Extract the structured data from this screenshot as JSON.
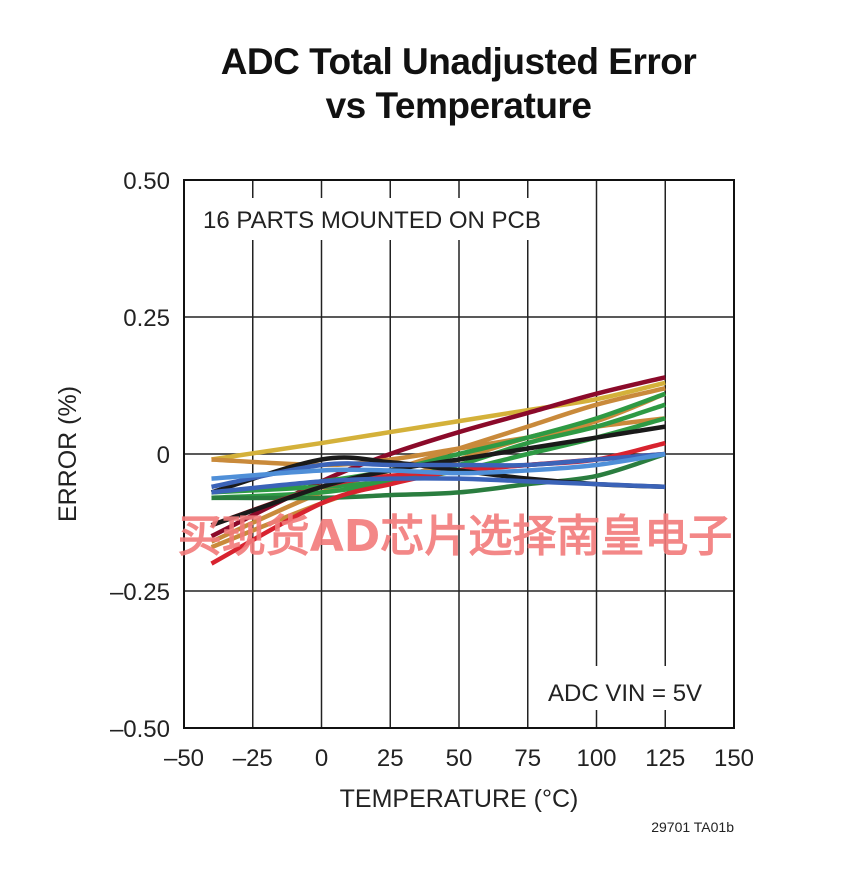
{
  "chart_data": {
    "type": "line",
    "title": [
      "ADC Total Unadjusted Error",
      "vs Temperature"
    ],
    "xlabel": "TEMPERATURE (°C)",
    "ylabel": "ERROR (%)",
    "xlim": [
      -50,
      150
    ],
    "ylim": [
      -0.5,
      0.5
    ],
    "x_ticks": [
      -50,
      -25,
      0,
      25,
      50,
      75,
      100,
      125,
      150
    ],
    "x_tick_labels": [
      "–50",
      "–25",
      "0",
      "25",
      "50",
      "75",
      "100",
      "125",
      "150"
    ],
    "y_ticks": [
      -0.5,
      -0.25,
      0,
      0.25,
      0.5
    ],
    "y_tick_labels": [
      "–0.50",
      "–0.25",
      "0",
      "0.25",
      "0.50"
    ],
    "grid": true,
    "annotations": [
      "16 PARTS MOUNTED ON PCB",
      "ADC VIN = 5V"
    ],
    "x": [
      -40,
      0,
      25,
      50,
      75,
      100,
      125
    ],
    "series": [
      {
        "color": "#d4b13a",
        "values": [
          -0.01,
          0.02,
          0.04,
          0.06,
          0.08,
          0.1,
          0.13
        ]
      },
      {
        "color": "#8b0a2a",
        "values": [
          -0.15,
          -0.05,
          0.0,
          0.04,
          0.075,
          0.11,
          0.14
        ]
      },
      {
        "color": "#c98a3b",
        "values": [
          -0.16,
          -0.07,
          -0.03,
          0.01,
          0.05,
          0.09,
          0.12
        ]
      },
      {
        "color": "#c98a3b",
        "values": [
          -0.17,
          -0.09,
          -0.05,
          -0.01,
          0.03,
          0.06,
          0.11
        ]
      },
      {
        "color": "#c98a3b",
        "values": [
          -0.01,
          -0.02,
          -0.01,
          0.01,
          0.03,
          0.05,
          0.065
        ]
      },
      {
        "color": "#2e9a44",
        "values": [
          -0.07,
          -0.05,
          -0.03,
          0.0,
          0.03,
          0.065,
          0.11
        ]
      },
      {
        "color": "#2e9a44",
        "values": [
          -0.08,
          -0.07,
          -0.05,
          -0.02,
          0.02,
          0.05,
          0.09
        ]
      },
      {
        "color": "#2e9a44",
        "values": [
          -0.07,
          -0.06,
          -0.05,
          -0.03,
          0.0,
          0.03,
          0.065
        ]
      },
      {
        "color": "#2a7d3f",
        "values": [
          -0.08,
          -0.08,
          -0.075,
          -0.07,
          -0.055,
          -0.04,
          0.0
        ]
      },
      {
        "color": "#d8232f",
        "values": [
          -0.2,
          -0.09,
          -0.055,
          -0.03,
          -0.02,
          -0.01,
          0.02
        ]
      },
      {
        "color": "#d8232f",
        "values": [
          -0.13,
          -0.06,
          -0.04,
          -0.03,
          -0.02,
          -0.01,
          0.0
        ]
      },
      {
        "color": "#1a1a1a",
        "values": [
          -0.07,
          -0.01,
          -0.015,
          -0.03,
          -0.045,
          -0.055,
          -0.06
        ]
      },
      {
        "color": "#1a1a1a",
        "values": [
          -0.13,
          -0.06,
          -0.03,
          -0.01,
          0.01,
          0.03,
          0.05
        ]
      },
      {
        "color": "#3b63b8",
        "values": [
          -0.06,
          -0.02,
          -0.02,
          -0.02,
          -0.02,
          -0.01,
          0.0
        ]
      },
      {
        "color": "#3b63b8",
        "values": [
          -0.07,
          -0.05,
          -0.045,
          -0.045,
          -0.05,
          -0.055,
          -0.06
        ]
      },
      {
        "color": "#4f8fd8",
        "values": [
          -0.045,
          -0.03,
          -0.03,
          -0.035,
          -0.03,
          -0.02,
          0.0
        ]
      }
    ]
  },
  "watermark": "买现货AD芯片选择南皇电子",
  "figure_id": "29701 TA01b"
}
